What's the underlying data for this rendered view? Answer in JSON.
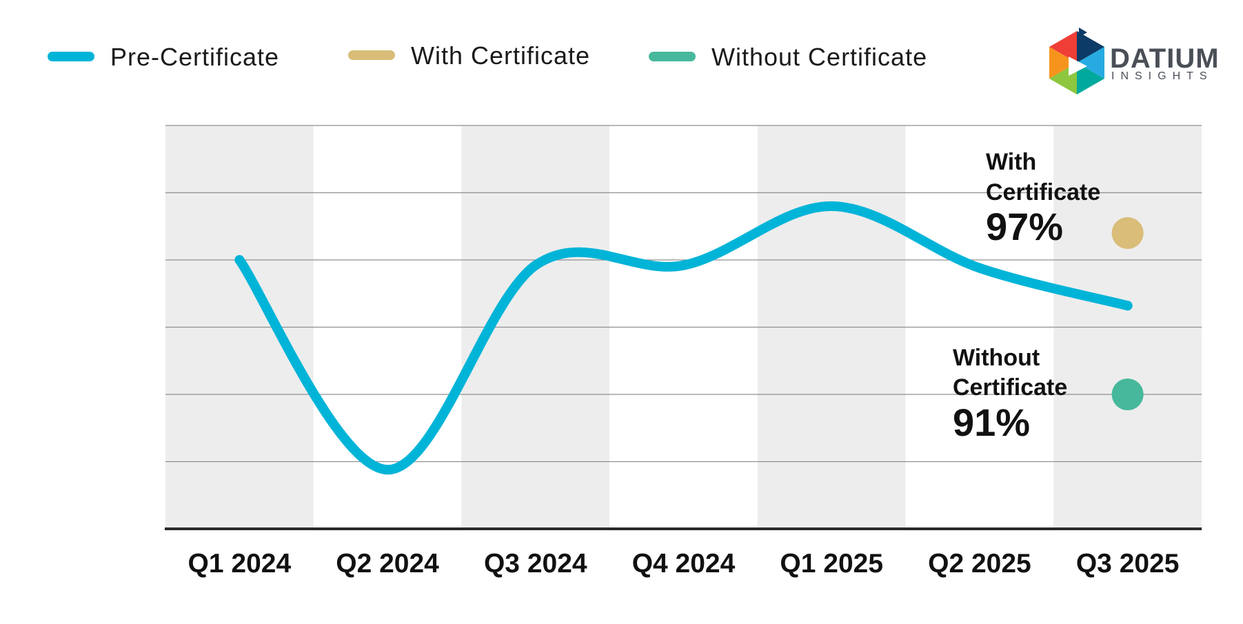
{
  "legend": [
    {
      "label": "Pre-Certificate",
      "color": "#00b4d8"
    },
    {
      "label": "With Certificate",
      "color": "#d9bd78"
    },
    {
      "label": "Without Certificate",
      "color": "#47b89c"
    }
  ],
  "logo": {
    "name": "DATIUM",
    "tagline": "INSIGHTS"
  },
  "annotations": {
    "with": {
      "line1": "With",
      "line2": "Certificate",
      "value": "97%"
    },
    "without": {
      "line1": "Without",
      "line2": "Certificate",
      "value": "91%"
    }
  },
  "chart_data": {
    "type": "line",
    "categories": [
      "Q1 2024",
      "Q2 2024",
      "Q3 2024",
      "Q4 2024",
      "Q1 2025",
      "Q2 2025",
      "Q3 2025"
    ],
    "series": [
      {
        "name": "Pre-Certificate",
        "values": [
          96.0,
          88.2,
          95.8,
          95.8,
          98.0,
          95.7,
          94.3
        ],
        "color": "#00b4d8"
      },
      {
        "name": "With Certificate",
        "x": "Q3 2025",
        "value": 97,
        "color": "#d9bd78"
      },
      {
        "name": "Without Certificate",
        "x": "Q3 2025",
        "value": 91,
        "color": "#47b89c"
      }
    ],
    "ylim": [
      86,
      101
    ],
    "ygrid_levels": [
      86,
      88.5,
      91,
      93.5,
      96,
      98.5,
      101
    ],
    "grid": true,
    "ytick_labels_shown": false,
    "legend_position": "top-left",
    "alternating_column_bands": true
  }
}
